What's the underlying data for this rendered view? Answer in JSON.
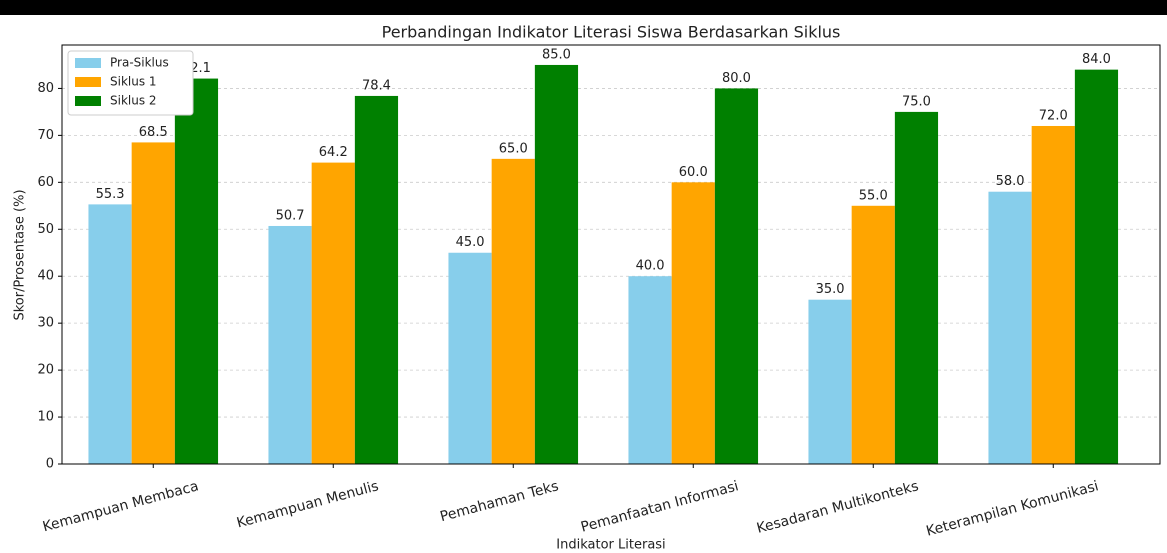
{
  "chart_data": {
    "type": "bar",
    "title": "Perbandingan Indikator Literasi Siswa Berdasarkan Siklus",
    "x_label": "Indikator Literasi",
    "y_label": "Skor/Prosentase (%)",
    "categories": [
      "Kemampuan Membaca",
      "Kemampuan Menulis",
      "Pemahaman Teks",
      "Pemanfaatan Informasi",
      "Kesadaran Multikonteks",
      "Keterampilan Komunikasi"
    ],
    "series": [
      {
        "name": "Pra-Siklus",
        "color": "#87ceeb",
        "values": [
          55.3,
          50.7,
          45,
          40,
          35,
          58
        ],
        "value_labels": [
          "55.3",
          "50.7",
          "45.0",
          "40.0",
          "35.0",
          "58.0"
        ]
      },
      {
        "name": "Siklus 1",
        "color": "#ffa500",
        "values": [
          68.5,
          64.2,
          65,
          60,
          55,
          72
        ],
        "value_labels": [
          "68.5",
          "64.2",
          "65.0",
          "60.0",
          "55.0",
          "72.0"
        ]
      },
      {
        "name": "Siklus 2",
        "color": "#008000",
        "values": [
          82.1,
          78.4,
          85,
          80,
          75,
          84
        ],
        "value_labels": [
          "82.1",
          "78.4",
          "85.0",
          "80.0",
          "75.0",
          "84.0"
        ]
      }
    ],
    "ylim": [
      0,
      89.25
    ],
    "yticks": [
      0,
      10,
      20,
      30,
      40,
      50,
      60,
      70,
      80
    ],
    "grid": true,
    "legend": "upper left"
  }
}
